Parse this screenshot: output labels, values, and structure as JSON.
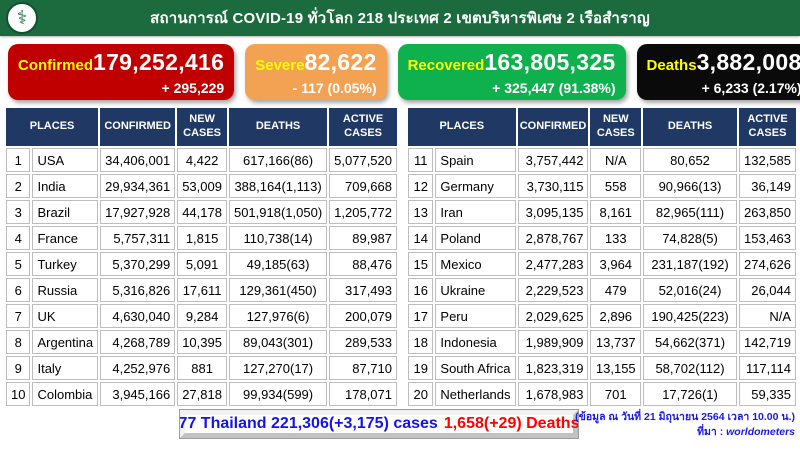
{
  "header": {
    "title": "สถานการณ์ COVID-19 ทั่วโลก 218 ประเทศ 2 เขตบริหารพิเศษ 2 เรือสำราญ",
    "logo": "moph-caduceus-emblem"
  },
  "colors": {
    "topbar_green": "#1c6b3e",
    "card_confirmed": "#c00000",
    "card_severe": "#f2a252",
    "card_recovered": "#0fb04e",
    "card_deaths": "#0a0a0a",
    "table_header_navy": "#1f3864",
    "highlight_yellow": "#ffff00",
    "highlight_red": "#ff0000",
    "new_cases_blue": "#0000f0",
    "deaths_red": "#ff0000"
  },
  "cards": [
    {
      "label": "Confirmed",
      "value": "179,252,416",
      "delta": "+ 295,229",
      "bg": "#c00000"
    },
    {
      "label": "Severe",
      "value": "82,622",
      "delta": "- 117 (0.05%)",
      "bg": "#f2a252"
    },
    {
      "label": "Recovered",
      "value": "163,805,325",
      "delta": "+ 325,447 (91.38%)",
      "bg": "#0fb04e"
    },
    {
      "label": "Deaths",
      "value": "3,882,008",
      "delta": "+ 6,233 (2.17%)",
      "bg": "#0a0a0a"
    }
  ],
  "table": {
    "headers": [
      "PLACES",
      "CONFIRMED",
      "NEW CASES",
      "DEATHS",
      "ACTIVE CASES"
    ]
  },
  "left_rows": [
    {
      "rank": "1",
      "place": "USA",
      "confirmed": "34,406,001",
      "new_cases": "4,422",
      "new_highlight": false,
      "deaths": "617,166(86)",
      "deaths_highlight": false,
      "active": "5,077,520"
    },
    {
      "rank": "2",
      "place": "India",
      "confirmed": "29,934,361",
      "new_cases": "53,009",
      "new_highlight": true,
      "deaths": "388,164(1,113)",
      "deaths_highlight": true,
      "active": "709,668"
    },
    {
      "rank": "3",
      "place": "Brazil",
      "confirmed": "17,927,928",
      "new_cases": "44,178",
      "new_highlight": true,
      "deaths": "501,918(1,050)",
      "deaths_highlight": true,
      "active": "1,205,772"
    },
    {
      "rank": "4",
      "place": "France",
      "confirmed": "5,757,311",
      "new_cases": "1,815",
      "new_highlight": false,
      "deaths": "110,738(14)",
      "deaths_highlight": false,
      "active": "89,987"
    },
    {
      "rank": "5",
      "place": "Turkey",
      "confirmed": "5,370,299",
      "new_cases": "5,091",
      "new_highlight": false,
      "deaths": "49,185(63)",
      "deaths_highlight": false,
      "active": "88,476"
    },
    {
      "rank": "6",
      "place": "Russia",
      "confirmed": "5,316,826",
      "new_cases": "17,611",
      "new_highlight": true,
      "deaths": "129,361(450)",
      "deaths_highlight": false,
      "active": "317,493"
    },
    {
      "rank": "7",
      "place": "UK",
      "confirmed": "4,630,040",
      "new_cases": "9,284",
      "new_highlight": false,
      "deaths": "127,976(6)",
      "deaths_highlight": false,
      "active": "200,079"
    },
    {
      "rank": "8",
      "place": "Argentina",
      "confirmed": "4,268,789",
      "new_cases": "10,395",
      "new_highlight": true,
      "deaths": "89,043(301)",
      "deaths_highlight": false,
      "active": "289,533"
    },
    {
      "rank": "9",
      "place": "Italy",
      "confirmed": "4,252,976",
      "new_cases": "881",
      "new_highlight": false,
      "deaths": "127,270(17)",
      "deaths_highlight": false,
      "active": "87,710"
    },
    {
      "rank": "10",
      "place": "Colombia",
      "confirmed": "3,945,166",
      "new_cases": "27,818",
      "new_highlight": true,
      "deaths": "99,934(599)",
      "deaths_highlight": true,
      "active": "178,071"
    }
  ],
  "right_rows": [
    {
      "rank": "11",
      "place": "Spain",
      "confirmed": "3,757,442",
      "new_cases": "N/A",
      "new_highlight": false,
      "deaths": "80,652",
      "deaths_highlight": false,
      "active": "132,585"
    },
    {
      "rank": "12",
      "place": "Germany",
      "confirmed": "3,730,115",
      "new_cases": "558",
      "new_highlight": false,
      "deaths": "90,966(13)",
      "deaths_highlight": false,
      "active": "36,149"
    },
    {
      "rank": "13",
      "place": "Iran",
      "confirmed": "3,095,135",
      "new_cases": "8,161",
      "new_highlight": false,
      "deaths": "82,965(111)",
      "deaths_highlight": false,
      "active": "263,850"
    },
    {
      "rank": "14",
      "place": "Poland",
      "confirmed": "2,878,767",
      "new_cases": "133",
      "new_highlight": false,
      "deaths": "74,828(5)",
      "deaths_highlight": false,
      "active": "153,463"
    },
    {
      "rank": "15",
      "place": "Mexico",
      "confirmed": "2,477,283",
      "new_cases": "3,964",
      "new_highlight": false,
      "deaths": "231,187(192)",
      "deaths_highlight": false,
      "active": "274,626"
    },
    {
      "rank": "16",
      "place": "Ukraine",
      "confirmed": "2,229,523",
      "new_cases": "479",
      "new_highlight": false,
      "deaths": "52,016(24)",
      "deaths_highlight": false,
      "active": "26,044"
    },
    {
      "rank": "17",
      "place": "Peru",
      "confirmed": "2,029,625",
      "new_cases": "2,896",
      "new_highlight": false,
      "deaths": "190,425(223)",
      "deaths_highlight": false,
      "active": "N/A"
    },
    {
      "rank": "18",
      "place": "Indonesia",
      "confirmed": "1,989,909",
      "new_cases": "13,737",
      "new_highlight": true,
      "deaths": "54,662(371)",
      "deaths_highlight": false,
      "active": "142,719"
    },
    {
      "rank": "19",
      "place": "South Africa",
      "confirmed": "1,823,319",
      "new_cases": "13,155",
      "new_highlight": true,
      "deaths": "58,702(112)",
      "deaths_highlight": false,
      "active": "117,114"
    },
    {
      "rank": "20",
      "place": "Netherlands",
      "confirmed": "1,678,983",
      "new_cases": "701",
      "new_highlight": false,
      "deaths": "17,726(1)",
      "deaths_highlight": false,
      "active": "59,335"
    }
  ],
  "thailand_bar": {
    "cases_text": "77 Thailand 221,306(+3,175) cases",
    "deaths_text": "1,658(+29) Deaths"
  },
  "footnote": {
    "line1": "(ข้อมูล ณ วันที่ 21 มิถุนายน 2564 เวลา 10.00 น.)",
    "line2_prefix": "ที่มา : ",
    "source": "worldometers"
  }
}
